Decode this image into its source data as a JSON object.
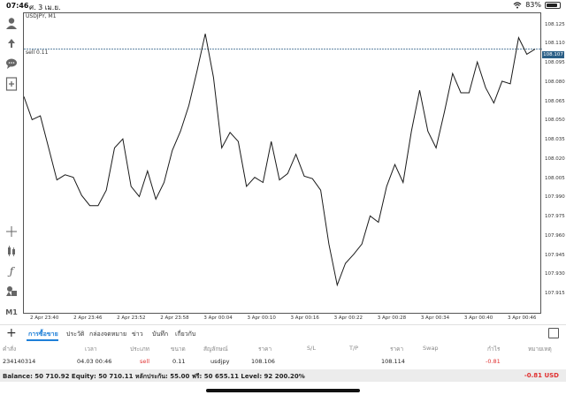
{
  "status": {
    "time": "07:46",
    "date": "ศ. 3 เม.ย.",
    "battery": "83%"
  },
  "chart": {
    "symbol": "USDJPY, M1",
    "order_label": "sell 0.11",
    "current_price": "108.107",
    "line_color": "#1a1a1a",
    "order_line_color": "#2b5f86"
  },
  "chart_data": {
    "type": "line",
    "series": [
      {
        "values": [
          108.07,
          108.052,
          108.055,
          108.03,
          108.005,
          108.009,
          108.007,
          107.993,
          107.985,
          107.985,
          107.997,
          108.03,
          108.037,
          108.0,
          107.992,
          108.012,
          107.99,
          108.003,
          108.028,
          108.043,
          108.063,
          108.09,
          108.119,
          108.085,
          108.03,
          108.042,
          108.035,
          108.0,
          108.007,
          108.003,
          108.035,
          108.005,
          108.01,
          108.025,
          108.008,
          108.006,
          107.997,
          107.955,
          107.923,
          107.94,
          107.947,
          107.955,
          107.977,
          107.972,
          108.0,
          108.017,
          108.003,
          108.043,
          108.075,
          108.043,
          108.03,
          108.058,
          108.088,
          108.073,
          108.073,
          108.097,
          108.077,
          108.065,
          108.082,
          108.08,
          108.116,
          108.103,
          108.107
        ]
      }
    ],
    "ylim": [
      107.9,
      108.135
    ],
    "yticks": [
      "108.125",
      "108.110",
      "108.095",
      "108.080",
      "108.065",
      "108.050",
      "108.035",
      "108.020",
      "108.005",
      "107.990",
      "107.975",
      "107.960",
      "107.945",
      "107.930",
      "107.915"
    ],
    "xticks": [
      "2 Apr 23:40",
      "2 Apr 23:46",
      "2 Apr 23:52",
      "2 Apr 23:58",
      "3 Apr 00:04",
      "3 Apr 00:10",
      "3 Apr 00:16",
      "3 Apr 00:22",
      "3 Apr 00:28",
      "3 Apr 00:34",
      "3 Apr 00:40",
      "3 Apr 00:46"
    ],
    "order_price": 108.107,
    "grid": false
  },
  "tabs": [
    "การซื้อขาย",
    "ประวัติ",
    "กล่องจดหมาย",
    "ข่าว",
    "บันทึก",
    "เกี่ยวกับ"
  ],
  "table": {
    "headers": [
      "คำสั่ง",
      "เวลา",
      "ประเภท",
      "ขนาด",
      "สัญลักษณ์",
      "ราคา",
      "S/L",
      "T/P",
      "ราคา",
      "Swap",
      "กำไร",
      "หมายเหตุ"
    ],
    "row": [
      "234140314",
      "04.03 00:46",
      "sell",
      "0.11",
      "usdjpy",
      "108.106",
      "",
      "",
      "108.114",
      "",
      "-0.81",
      ""
    ]
  },
  "balance": {
    "text": "Balance: 50 710.92 Equity: 50 710.11 หลักประกัน: 55.00 ฟรี: 50 655.11 Level: 92 200.20%",
    "profit": "-0.81  USD"
  }
}
